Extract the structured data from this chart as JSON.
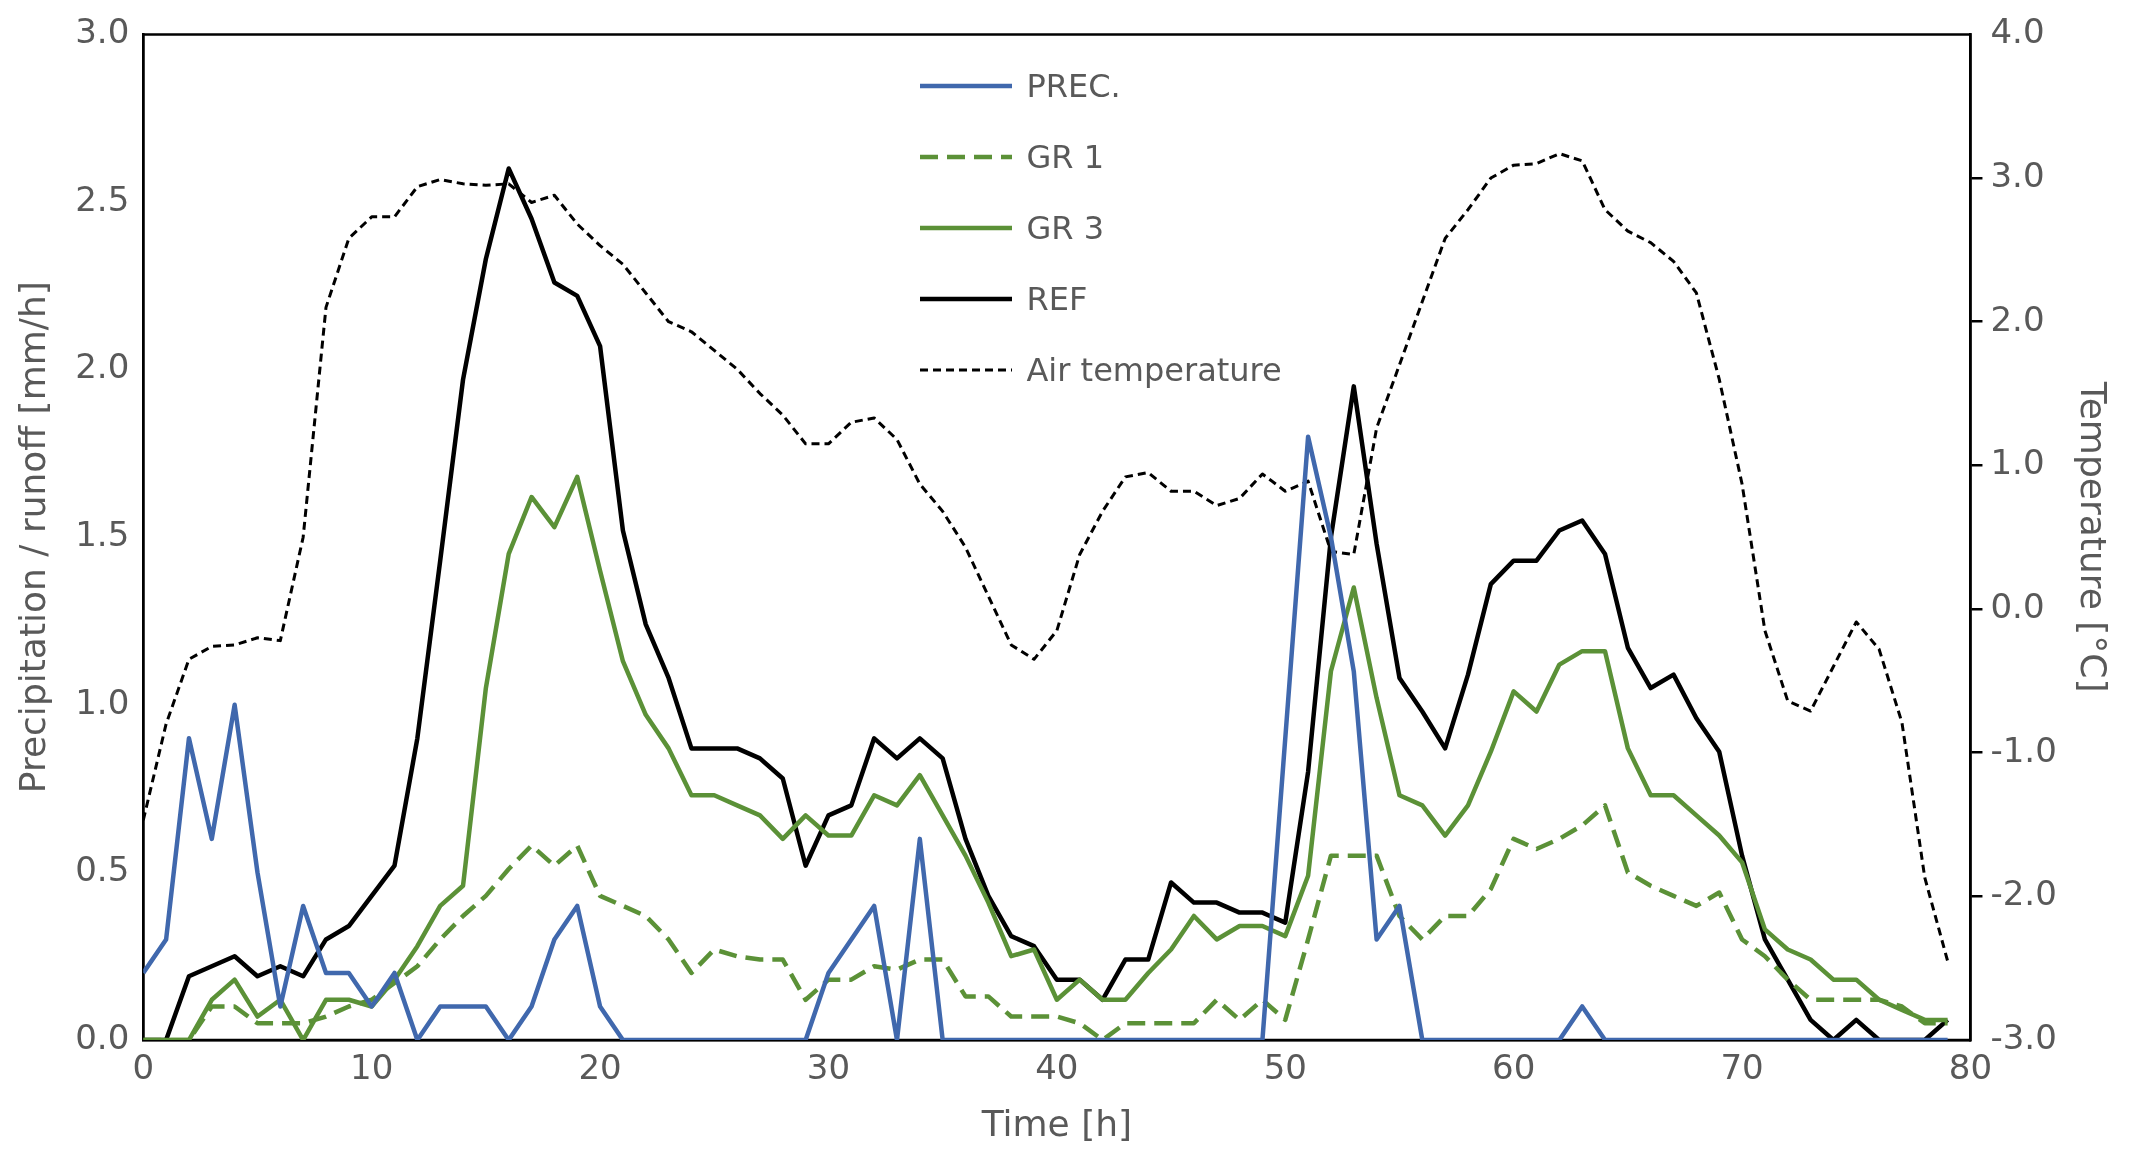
{
  "chart_data": {
    "type": "line",
    "xlabel": "Time [h]",
    "ylabel": "Precipitation / runoff [mm/h]",
    "y2label": "Temperature [°C]",
    "x": [
      0,
      1,
      2,
      3,
      4,
      5,
      6,
      7,
      8,
      9,
      10,
      11,
      12,
      13,
      14,
      15,
      16,
      17,
      18,
      19,
      20,
      21,
      22,
      23,
      24,
      25,
      26,
      27,
      28,
      29,
      30,
      31,
      32,
      33,
      34,
      35,
      36,
      37,
      38,
      39,
      40,
      41,
      42,
      43,
      44,
      45,
      46,
      47,
      48,
      49,
      50,
      51,
      52,
      53,
      54,
      55,
      56,
      57,
      58,
      59,
      60,
      61,
      62,
      63,
      64,
      65,
      66,
      67,
      68,
      69,
      70,
      71,
      72,
      73,
      74,
      75,
      76,
      77,
      78,
      79
    ],
    "xlim": [
      0,
      80
    ],
    "xticks": [
      0,
      10,
      20,
      30,
      40,
      50,
      60,
      70,
      80
    ],
    "ylim": [
      0,
      3
    ],
    "yticks": [
      {
        "value": 0,
        "label": "0.0"
      },
      {
        "value": 0.5,
        "label": "0.5"
      },
      {
        "value": 1,
        "label": "1.0"
      },
      {
        "value": 1.5,
        "label": "1.5"
      },
      {
        "value": 2,
        "label": "2.0"
      },
      {
        "value": 2.5,
        "label": "2.5"
      },
      {
        "value": 3,
        "label": "3.0"
      }
    ],
    "y2lim": [
      -3,
      4
    ],
    "y2ticks": [
      {
        "value": -3,
        "label": "-3.0"
      },
      {
        "value": -2,
        "label": "-2.0"
      },
      {
        "value": -1,
        "label": "-1.0"
      },
      {
        "value": 0,
        "label": "0.0"
      },
      {
        "value": 1,
        "label": "1.0"
      },
      {
        "value": 2,
        "label": "2.0"
      },
      {
        "value": 3,
        "label": "3.0"
      },
      {
        "value": 4,
        "label": "4.0"
      }
    ],
    "grid": false,
    "legend": "top",
    "marker": "none",
    "series": [
      {
        "name": "PREC.",
        "color": "#4068ad",
        "line_style": "solid",
        "values": [
          0.2,
          0.3,
          0.9,
          0.6,
          1.0,
          0.5,
          0.1,
          0.4,
          0.2,
          0.2,
          0.1,
          0.2,
          0,
          0.1,
          0.1,
          0.1,
          0,
          0.1,
          0.3,
          0.4,
          0.1,
          0,
          0,
          0,
          0,
          0,
          0,
          0,
          0,
          0,
          0.2,
          0.3,
          0.4,
          0,
          0.6,
          0,
          0,
          0,
          0,
          0,
          0,
          0,
          0,
          0,
          0,
          0,
          0,
          0,
          0,
          0,
          0.9,
          1.8,
          1.5,
          1.1,
          0.3,
          0.4,
          0,
          0,
          0,
          0,
          0,
          0,
          0,
          0.1,
          0,
          0,
          0,
          0,
          0,
          0,
          0,
          0,
          0,
          0,
          0,
          0,
          0,
          0,
          0,
          0
        ]
      },
      {
        "name": "GR 1",
        "color": "#5b9137",
        "line_style": "dashed",
        "values": [
          0,
          0,
          0,
          0.1,
          0.1,
          0.05,
          0.05,
          0.05,
          0.07,
          0.1,
          0.12,
          0.17,
          0.22,
          0.3,
          0.37,
          0.43,
          0.51,
          0.58,
          0.52,
          0.58,
          0.43,
          0.4,
          0.37,
          0.3,
          0.2,
          0.27,
          0.25,
          0.24,
          0.24,
          0.12,
          0.18,
          0.18,
          0.22,
          0.21,
          0.24,
          0.24,
          0.13,
          0.13,
          0.07,
          0.07,
          0.07,
          0.05,
          0,
          0.05,
          0.05,
          0.05,
          0.05,
          0.12,
          0.06,
          0.12,
          0.06,
          0.3,
          0.55,
          0.55,
          0.55,
          0.37,
          0.3,
          0.37,
          0.37,
          0.45,
          0.6,
          0.57,
          0.6,
          0.64,
          0.7,
          0.5,
          0.46,
          0.43,
          0.4,
          0.44,
          0.3,
          0.25,
          0.18,
          0.12,
          0.12,
          0.12,
          0.12,
          0.1,
          0.05,
          0.05
        ]
      },
      {
        "name": "GR 3",
        "color": "#5b9137",
        "line_style": "solid",
        "values": [
          0,
          0,
          0,
          0.12,
          0.18,
          0.07,
          0.12,
          0,
          0.12,
          0.12,
          0.1,
          0.18,
          0.28,
          0.4,
          0.46,
          1.05,
          1.45,
          1.62,
          1.53,
          1.68,
          1.4,
          1.13,
          0.97,
          0.87,
          0.73,
          0.73,
          0.7,
          0.67,
          0.6,
          0.67,
          0.61,
          0.61,
          0.73,
          0.7,
          0.79,
          0.67,
          0.55,
          0.41,
          0.25,
          0.27,
          0.12,
          0.18,
          0.12,
          0.12,
          0.2,
          0.27,
          0.37,
          0.3,
          0.34,
          0.34,
          0.31,
          0.49,
          1.1,
          1.35,
          1.02,
          0.73,
          0.7,
          0.61,
          0.7,
          0.86,
          1.04,
          0.98,
          1.12,
          1.16,
          1.16,
          0.87,
          0.73,
          0.73,
          0.67,
          0.61,
          0.53,
          0.33,
          0.27,
          0.24,
          0.18,
          0.18,
          0.12,
          0.09,
          0.06,
          0.06
        ]
      },
      {
        "name": "REF",
        "color": "#000000",
        "line_style": "solid",
        "values": [
          0,
          0,
          0.19,
          0.22,
          0.25,
          0.19,
          0.22,
          0.19,
          0.3,
          0.34,
          0.43,
          0.52,
          0.9,
          1.43,
          1.97,
          2.33,
          2.6,
          2.45,
          2.26,
          2.22,
          2.07,
          1.52,
          1.24,
          1.08,
          0.87,
          0.87,
          0.87,
          0.84,
          0.78,
          0.52,
          0.67,
          0.7,
          0.9,
          0.84,
          0.9,
          0.84,
          0.6,
          0.43,
          0.31,
          0.28,
          0.18,
          0.18,
          0.12,
          0.24,
          0.24,
          0.47,
          0.41,
          0.41,
          0.38,
          0.38,
          0.35,
          0.8,
          1.5,
          1.95,
          1.48,
          1.08,
          0.98,
          0.87,
          1.09,
          1.36,
          1.43,
          1.43,
          1.52,
          1.55,
          1.45,
          1.17,
          1.05,
          1.09,
          0.96,
          0.86,
          0.55,
          0.3,
          0.18,
          0.06,
          0,
          0.06,
          0,
          0,
          0,
          0.06
        ]
      },
      {
        "name": "Air temperature",
        "color": "#000000",
        "line_style": "dotted",
        "axis": "y2",
        "values": [
          -1.47,
          -0.8,
          -0.35,
          -0.26,
          -0.25,
          -0.2,
          -0.22,
          0.5,
          2.1,
          2.58,
          2.73,
          2.73,
          2.94,
          2.99,
          2.96,
          2.95,
          2.96,
          2.83,
          2.88,
          2.68,
          2.53,
          2.4,
          2.2,
          2.0,
          1.93,
          1.8,
          1.67,
          1.5,
          1.35,
          1.15,
          1.15,
          1.3,
          1.33,
          1.18,
          0.87,
          0.68,
          0.43,
          0.09,
          -0.25,
          -0.35,
          -0.15,
          0.38,
          0.68,
          0.92,
          0.95,
          0.82,
          0.82,
          0.72,
          0.77,
          0.94,
          0.82,
          0.89,
          0.4,
          0.38,
          1.26,
          1.7,
          2.14,
          2.58,
          2.78,
          3.0,
          3.09,
          3.1,
          3.17,
          3.12,
          2.78,
          2.63,
          2.55,
          2.42,
          2.2,
          1.6,
          0.87,
          -0.15,
          -0.64,
          -0.71,
          -0.4,
          -0.09,
          -0.28,
          -0.79,
          -1.87,
          -2.45
        ]
      }
    ]
  }
}
